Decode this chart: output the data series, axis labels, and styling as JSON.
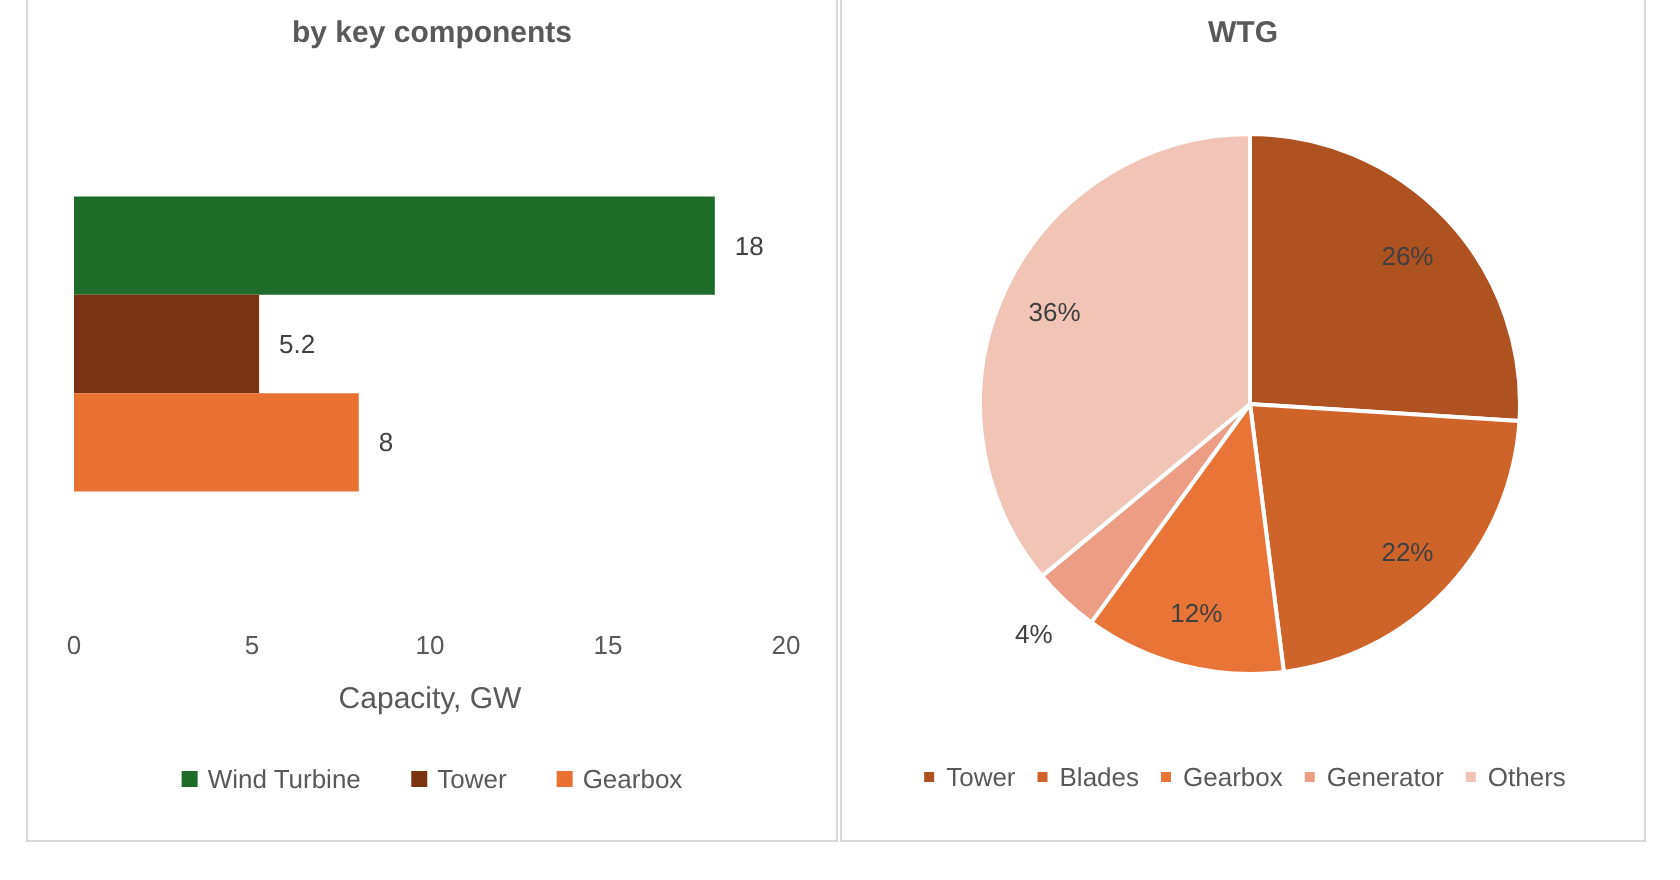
{
  "chart_data": [
    {
      "type": "bar",
      "title": "by key components",
      "orientation": "horizontal",
      "categories": [
        null
      ],
      "series": [
        {
          "name": "Wind Turbine",
          "color": "#1e6b2a",
          "values": [
            18
          ]
        },
        {
          "name": "Tower",
          "color": "#7b3411",
          "values": [
            5.2
          ]
        },
        {
          "name": "Gearbox",
          "color": "#e97132",
          "values": [
            8
          ]
        }
      ],
      "xlabel": "Capacity, GW",
      "xlim": [
        0,
        20
      ],
      "xticks": [
        0,
        5,
        10,
        15,
        20
      ],
      "data_labels": true,
      "legend": "bottom"
    },
    {
      "type": "pie",
      "title": "WTG",
      "categories": [
        "Tower",
        "Blades",
        "Gearbox",
        "Generator",
        "Others"
      ],
      "values": [
        26,
        22,
        12,
        4,
        36
      ],
      "colors": [
        "#ad5220",
        "#cf642b",
        "#e87537",
        "#eb9e84",
        "#f2c4b7"
      ],
      "value_labels": [
        "26%",
        "22%",
        "12%",
        "4%",
        "36%"
      ],
      "legend": "bottom"
    }
  ]
}
